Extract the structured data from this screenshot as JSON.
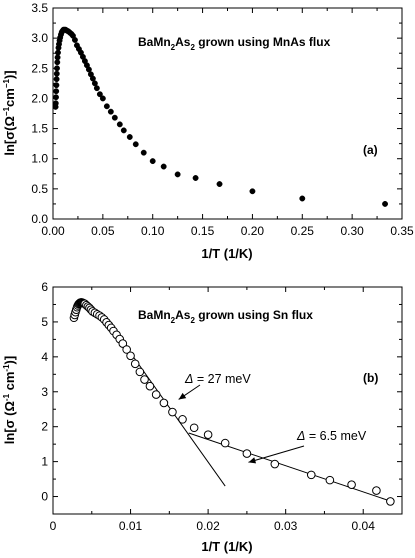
{
  "chart_data": [
    {
      "type": "scatter",
      "panel_label": "(a)",
      "title_parts": [
        "BaMn",
        "2",
        "As",
        "2",
        " grown using MnAs flux"
      ],
      "xlabel": "1/T (1/K)",
      "ylabel_parts": [
        "ln[σ(Ω",
        "−1",
        "cm",
        "−1",
        ")]"
      ],
      "xlim": [
        0,
        0.35
      ],
      "ylim": [
        0,
        3.5
      ],
      "xticks": [
        "0.00",
        "0.05",
        "0.10",
        "0.15",
        "0.20",
        "0.25",
        "0.30",
        "0.35"
      ],
      "yticks": [
        "0.0",
        "0.5",
        "1.0",
        "1.5",
        "2.0",
        "2.5",
        "3.0",
        "3.5"
      ],
      "marker": "filled-circle",
      "points": [
        [
          0.0026,
          1.86
        ],
        [
          0.0028,
          1.92
        ],
        [
          0.003,
          2.02
        ],
        [
          0.0032,
          2.12
        ],
        [
          0.0034,
          2.22
        ],
        [
          0.0036,
          2.32
        ],
        [
          0.0038,
          2.41
        ],
        [
          0.004,
          2.5
        ],
        [
          0.0043,
          2.6
        ],
        [
          0.0046,
          2.68
        ],
        [
          0.005,
          2.76
        ],
        [
          0.0055,
          2.84
        ],
        [
          0.006,
          2.9
        ],
        [
          0.0066,
          2.96
        ],
        [
          0.0072,
          3.01
        ],
        [
          0.008,
          3.06
        ],
        [
          0.0088,
          3.1
        ],
        [
          0.0096,
          3.12
        ],
        [
          0.0105,
          3.14
        ],
        [
          0.0115,
          3.14
        ],
        [
          0.0125,
          3.14
        ],
        [
          0.0135,
          3.13
        ],
        [
          0.0145,
          3.12
        ],
        [
          0.0156,
          3.11
        ],
        [
          0.017,
          3.09
        ],
        [
          0.0185,
          3.07
        ],
        [
          0.02,
          3.04
        ],
        [
          0.022,
          2.97
        ],
        [
          0.024,
          2.88
        ],
        [
          0.026,
          2.82
        ],
        [
          0.028,
          2.76
        ],
        [
          0.03,
          2.69
        ],
        [
          0.032,
          2.62
        ],
        [
          0.034,
          2.55
        ],
        [
          0.036,
          2.48
        ],
        [
          0.038,
          2.4
        ],
        [
          0.04,
          2.33
        ],
        [
          0.042,
          2.25
        ],
        [
          0.044,
          2.17
        ],
        [
          0.047,
          2.07
        ],
        [
          0.05,
          2.0
        ],
        [
          0.054,
          1.87
        ],
        [
          0.058,
          1.78
        ],
        [
          0.062,
          1.68
        ],
        [
          0.067,
          1.57
        ],
        [
          0.071,
          1.47
        ],
        [
          0.077,
          1.36
        ],
        [
          0.083,
          1.24
        ],
        [
          0.091,
          1.1
        ],
        [
          0.1,
          0.96
        ],
        [
          0.111,
          0.87
        ],
        [
          0.125,
          0.74
        ],
        [
          0.143,
          0.68
        ],
        [
          0.167,
          0.58
        ],
        [
          0.2,
          0.46
        ],
        [
          0.25,
          0.34
        ],
        [
          0.333,
          0.25
        ]
      ]
    },
    {
      "type": "scatter",
      "panel_label": "(b)",
      "title_parts": [
        "BaMn",
        "2",
        "As",
        "2",
        " grown using Sn flux"
      ],
      "xlabel": "1/T (1/K)",
      "ylabel_parts": [
        "ln[σ (Ω",
        "-1",
        " cm",
        "-1",
        ")]"
      ],
      "xlim": [
        0,
        0.045
      ],
      "ylim": [
        -0.5,
        6
      ],
      "xticks": [
        "0",
        "0.01",
        "0.02",
        "0.03",
        "0.04"
      ],
      "yticks": [
        "0",
        "1",
        "2",
        "3",
        "4",
        "5",
        "6"
      ],
      "marker": "open-circle",
      "points": [
        [
          0.0027,
          5.12
        ],
        [
          0.0028,
          5.2
        ],
        [
          0.0029,
          5.28
        ],
        [
          0.003,
          5.35
        ],
        [
          0.0031,
          5.42
        ],
        [
          0.0032,
          5.47
        ],
        [
          0.0033,
          5.51
        ],
        [
          0.0034,
          5.53
        ],
        [
          0.0035,
          5.55
        ],
        [
          0.0036,
          5.56
        ],
        [
          0.0037,
          5.56
        ],
        [
          0.0038,
          5.55
        ],
        [
          0.0039,
          5.54
        ],
        [
          0.004,
          5.53
        ],
        [
          0.0041,
          5.52
        ],
        [
          0.0043,
          5.48
        ],
        [
          0.0045,
          5.44
        ],
        [
          0.0047,
          5.4
        ],
        [
          0.0049,
          5.35
        ],
        [
          0.0051,
          5.3
        ],
        [
          0.0054,
          5.26
        ],
        [
          0.0057,
          5.22
        ],
        [
          0.006,
          5.18
        ],
        [
          0.0063,
          5.13
        ],
        [
          0.0066,
          5.07
        ],
        [
          0.0069,
          4.99
        ],
        [
          0.0072,
          4.91
        ],
        [
          0.0075,
          4.83
        ],
        [
          0.0078,
          4.74
        ],
        [
          0.0082,
          4.63
        ],
        [
          0.0086,
          4.51
        ],
        [
          0.009,
          4.38
        ],
        [
          0.0095,
          4.21
        ],
        [
          0.01,
          4.03
        ],
        [
          0.0106,
          3.8
        ],
        [
          0.0112,
          3.57
        ],
        [
          0.0118,
          3.35
        ],
        [
          0.0125,
          3.16
        ],
        [
          0.0133,
          2.92
        ],
        [
          0.0143,
          2.68
        ],
        [
          0.0154,
          2.42
        ],
        [
          0.0167,
          2.21
        ],
        [
          0.0182,
          1.97
        ],
        [
          0.02,
          1.77
        ],
        [
          0.0222,
          1.53
        ],
        [
          0.025,
          1.23
        ],
        [
          0.0286,
          0.93
        ],
        [
          0.0333,
          0.62
        ],
        [
          0.0357,
          0.47
        ],
        [
          0.0385,
          0.34
        ],
        [
          0.0417,
          0.17
        ],
        [
          0.0435,
          -0.14
        ]
      ],
      "fit_lines": [
        {
          "x": [
            0.0078,
            0.0222
          ],
          "y": [
            4.8,
            0.3
          ]
        },
        {
          "x": [
            0.0175,
            0.0435
          ],
          "y": [
            1.82,
            -0.13
          ]
        }
      ],
      "annotations": [
        {
          "parts": [
            "Δ",
            " = 27 meV"
          ],
          "points_to": [
            0.0162,
            2.78
          ]
        },
        {
          "parts": [
            "Δ",
            " = 6.5 meV"
          ],
          "points_to": [
            0.0252,
            0.98
          ]
        }
      ]
    }
  ]
}
